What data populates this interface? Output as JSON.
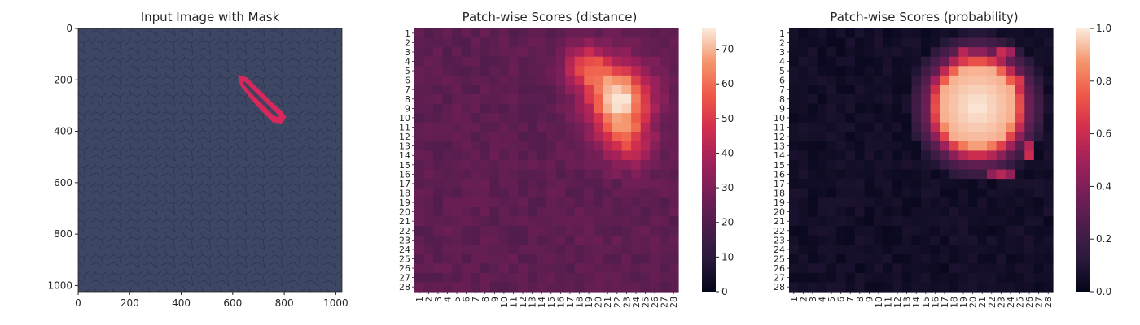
{
  "chart_data": [
    {
      "type": "image",
      "title": "Input Image with Mask",
      "xlim": [
        0,
        1024
      ],
      "ylim": [
        1024,
        0
      ],
      "xticks": [
        0,
        200,
        400,
        600,
        800,
        1000
      ],
      "yticks": [
        0,
        200,
        400,
        600,
        800,
        1000
      ],
      "background_color": "#3d4763",
      "mask_color": "#d6285a",
      "mask_polygon": [
        [
          620,
          180
        ],
        [
          655,
          190
        ],
        [
          700,
          235
        ],
        [
          745,
          280
        ],
        [
          790,
          320
        ],
        [
          808,
          345
        ],
        [
          790,
          370
        ],
        [
          755,
          365
        ],
        [
          715,
          325
        ],
        [
          670,
          275
        ],
        [
          628,
          220
        ]
      ],
      "mask_hole_polygon": [
        [
          645,
          205
        ],
        [
          690,
          250
        ],
        [
          740,
          300
        ],
        [
          770,
          330
        ],
        [
          780,
          345
        ],
        [
          760,
          340
        ],
        [
          720,
          300
        ],
        [
          675,
          255
        ],
        [
          640,
          215
        ]
      ]
    },
    {
      "type": "heatmap",
      "title": "Patch-wise Scores (distance)",
      "rows": 28,
      "cols": 28,
      "tick_labels": [
        "1",
        "2",
        "3",
        "4",
        "5",
        "6",
        "7",
        "8",
        "9",
        "10",
        "11",
        "12",
        "13",
        "14",
        "15",
        "16",
        "17",
        "18",
        "19",
        "20",
        "21",
        "22",
        "23",
        "24",
        "25",
        "26",
        "27",
        "28"
      ],
      "colormap": "rocket",
      "vmin": 0,
      "vmax": 76,
      "colorbar_ticks": [
        0,
        10,
        20,
        30,
        40,
        50,
        60,
        70
      ],
      "hotspots": [
        {
          "row": 7.6,
          "col": 22.2,
          "amplitude": 50,
          "spread": 2.4
        },
        {
          "row": 4.5,
          "col": 18.8,
          "amplitude": 28,
          "spread": 1.6
        },
        {
          "row": 11.5,
          "col": 22.5,
          "amplitude": 22,
          "spread": 2.0
        },
        {
          "row": 13.5,
          "col": 23.5,
          "amplitude": 10,
          "spread": 1.8
        }
      ],
      "baseline": 23
    },
    {
      "type": "heatmap",
      "title": "Patch-wise Scores (probability)",
      "rows": 28,
      "cols": 28,
      "tick_labels": [
        "1",
        "2",
        "3",
        "4",
        "5",
        "6",
        "7",
        "8",
        "9",
        "10",
        "11",
        "12",
        "13",
        "14",
        "15",
        "16",
        "17",
        "18",
        "19",
        "20",
        "21",
        "22",
        "23",
        "24",
        "25",
        "26",
        "27",
        "28"
      ],
      "colormap": "rocket",
      "vmin": 0.0,
      "vmax": 1.0,
      "colorbar_ticks": [
        "0.0",
        "0.2",
        "0.4",
        "0.6",
        "0.8",
        "1.0"
      ],
      "blob": {
        "center_row": 8.8,
        "center_col": 20.5,
        "radius_rows": 5.6,
        "radius_cols": 5.2
      },
      "hot_cells": [
        {
          "row": 3,
          "col": 19,
          "value": 0.55
        },
        {
          "row": 3,
          "col": 23,
          "value": 0.6
        },
        {
          "row": 3,
          "col": 24,
          "value": 0.5
        },
        {
          "row": 6,
          "col": 25,
          "value": 0.65
        },
        {
          "row": 13,
          "col": 26,
          "value": 0.55
        },
        {
          "row": 14,
          "col": 26,
          "value": 0.6
        },
        {
          "row": 16,
          "col": 22,
          "value": 0.45
        },
        {
          "row": 16,
          "col": 23,
          "value": 0.55
        },
        {
          "row": 16,
          "col": 24,
          "value": 0.45
        }
      ]
    }
  ]
}
